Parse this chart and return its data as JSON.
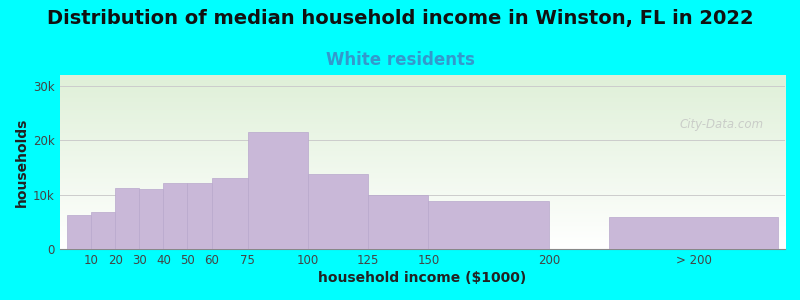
{
  "title": "Distribution of median household income in Winston, FL in 2022",
  "subtitle": "White residents",
  "xlabel": "household income ($1000)",
  "ylabel": "households",
  "bar_labels": [
    "10",
    "20",
    "30",
    "40",
    "50",
    "60",
    "75",
    "100",
    "125",
    "150",
    "200",
    "> 200"
  ],
  "bar_values": [
    6200,
    6800,
    11200,
    11100,
    12200,
    12200,
    13000,
    21500,
    13700,
    10000,
    8800,
    5800
  ],
  "bar_color": "#c9b8d8",
  "bar_edgecolor": "#b8a8cc",
  "background_color": "#00ffff",
  "plot_bg_top": "#dff0d8",
  "plot_bg_bottom": "#ffffff",
  "title_fontsize": 14,
  "subtitle_fontsize": 12,
  "subtitle_color": "#3399cc",
  "axis_label_fontsize": 10,
  "tick_fontsize": 8.5,
  "ytick_labels": [
    "0",
    "10k",
    "20k",
    "30k"
  ],
  "ytick_values": [
    0,
    10000,
    20000,
    30000
  ],
  "ylim": [
    0,
    32000
  ],
  "watermark": "City-Data.com",
  "x_ticks_pos": [
    10,
    20,
    30,
    40,
    50,
    60,
    75,
    100,
    125,
    150,
    200,
    260
  ],
  "bar_left": [
    0,
    10,
    20,
    30,
    40,
    50,
    60,
    75,
    100,
    125,
    150,
    225
  ],
  "bar_right": [
    10,
    20,
    30,
    40,
    50,
    60,
    75,
    100,
    125,
    150,
    200,
    295
  ],
  "xlim": [
    -3,
    298
  ]
}
